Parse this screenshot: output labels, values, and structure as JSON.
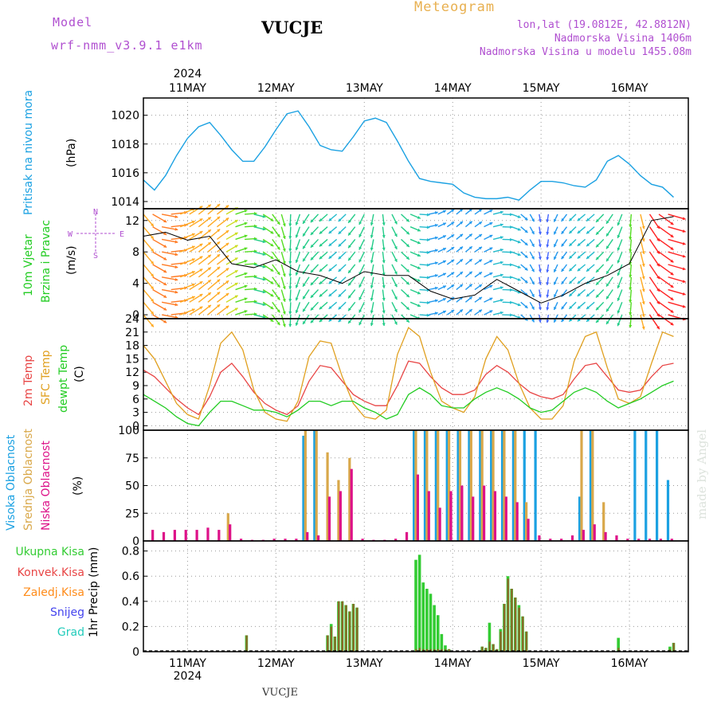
{
  "header": {
    "model_label": "Model",
    "model_name": "wrf-nmm_v3.9.1  e1km",
    "station": "VUCJE",
    "meteogram": "Meteogram",
    "lonlat": "lon,lat (19.0812E, 42.8812N)",
    "altitude": "Nadmorska Visina 1406m",
    "model_altitude": "Nadmorska Visina u modelu 1455.08m",
    "footer_station": "VUCJE",
    "signature": "made by Angel"
  },
  "colors": {
    "pressure": "#1ba1e2",
    "temp": "#e84545",
    "sfc": "#e0a020",
    "dewpt": "#22cc22",
    "high_cloud": "#1ba1e2",
    "mid_cloud": "#d9a84a",
    "low_cloud": "#dd1188",
    "total_precip": "#33cc33",
    "conv_precip": "#e84545",
    "freezing_precip": "#ff8c1a",
    "snow": "#4444ee",
    "graupel": "#22ccbb"
  },
  "axes": {
    "year": "2024",
    "days": [
      "11MAY",
      "12MAY",
      "13MAY",
      "14MAY",
      "15MAY",
      "16MAY"
    ]
  },
  "panels": {
    "pressure": {
      "label": "Pritisak na nivou mora",
      "unit": "(hPa)"
    },
    "wind": {
      "label1": "10m Vjetar",
      "label2": "Brzina i Pravac",
      "unit": "(m/s)",
      "compass": [
        "N",
        "W",
        "E",
        "S"
      ]
    },
    "temp": {
      "label1": "2m Temp",
      "label2": "SFC Temp",
      "label3": "dewpt Temp",
      "unit": "(C)"
    },
    "cloud": {
      "label1": "Visoka Oblacnost",
      "label2": "Srednja Oblacnost",
      "label3": "Niska Oblacnost",
      "unit": "(%)"
    },
    "precip": {
      "legend": [
        "Ukupna Kisa",
        "Konvek.Kisa",
        "Zaledj.Kisa",
        "Snijeg",
        "Grad"
      ],
      "unit": "1hr Precip (mm)"
    }
  },
  "chart_data": [
    {
      "type": "line",
      "title": "",
      "ylabel": "Pritisak na nivou mora (hPa)",
      "ylim": [
        1013.5,
        1021.2
      ],
      "yticks": [
        1014,
        1016,
        1018,
        1020
      ],
      "x_hours": [
        0,
        3,
        6,
        9,
        12,
        15,
        18,
        21,
        24,
        27,
        30,
        33,
        36,
        39,
        42,
        45,
        48,
        51,
        54,
        57,
        60,
        63,
        66,
        69,
        72,
        75,
        78,
        81,
        84,
        87,
        90,
        93,
        96,
        99,
        102,
        105,
        108,
        111,
        114,
        117,
        120,
        123,
        126,
        129,
        132,
        135,
        138,
        141,
        144
      ],
      "series": [
        {
          "values": [
            1015.5,
            1014.8,
            1015.8,
            1017.2,
            1018.4,
            1019.2,
            1019.5,
            1018.6,
            1017.6,
            1016.8,
            1016.8,
            1017.8,
            1019.0,
            1020.1,
            1020.3,
            1019.2,
            1017.9,
            1017.6,
            1017.5,
            1018.5,
            1019.6,
            1019.8,
            1019.5,
            1018.2,
            1016.8,
            1015.6,
            1015.4,
            1015.3,
            1015.2,
            1014.6,
            1014.3,
            1014.2,
            1014.2,
            1014.3,
            1014.1,
            1014.8,
            1015.4,
            1015.4,
            1015.3,
            1015.1,
            1015.0,
            1015.5,
            1016.8,
            1017.2,
            1016.6,
            1015.8,
            1015.2,
            1015.0,
            1014.3
          ]
        }
      ]
    },
    {
      "type": "scatter",
      "title": "",
      "ylabel": "10m Vjetar Brzina i Pravac (m/s)",
      "ylim": [
        -0.5,
        13.5
      ],
      "yticks": [
        0,
        4,
        8,
        12
      ],
      "x_hours": [
        0,
        6,
        12,
        18,
        24,
        30,
        36,
        42,
        48,
        54,
        60,
        66,
        72,
        78,
        84,
        90,
        96,
        102,
        108,
        114,
        120,
        126,
        132,
        138,
        144
      ],
      "speed": [
        10.0,
        10.5,
        9.5,
        10.0,
        6.5,
        6.0,
        7.0,
        5.5,
        5.0,
        4.0,
        5.5,
        5.0,
        5.0,
        3.0,
        2.0,
        2.5,
        4.5,
        3.0,
        1.5,
        2.5,
        4.0,
        5.0,
        6.5,
        12.0,
        12.5
      ]
    },
    {
      "type": "line",
      "title": "",
      "ylabel": "(C)",
      "ylim": [
        -1,
        24
      ],
      "yticks": [
        0,
        3,
        6,
        9,
        12,
        15,
        18,
        21,
        24
      ],
      "x_hours": [
        0,
        3,
        6,
        9,
        12,
        15,
        18,
        21,
        24,
        27,
        30,
        33,
        36,
        39,
        42,
        45,
        48,
        51,
        54,
        57,
        60,
        63,
        66,
        69,
        72,
        75,
        78,
        81,
        84,
        87,
        90,
        93,
        96,
        99,
        102,
        105,
        108,
        111,
        114,
        117,
        120,
        123,
        126,
        129,
        132,
        135,
        138,
        141,
        144
      ],
      "series": [
        {
          "name": "2m Temp",
          "values": [
            12.5,
            11.0,
            8.5,
            6.0,
            4.0,
            2.5,
            6.5,
            12.0,
            14.0,
            11.0,
            7.5,
            5.0,
            3.5,
            2.5,
            4.5,
            10.0,
            13.5,
            13.0,
            10.0,
            7.0,
            5.5,
            4.5,
            4.5,
            9.0,
            14.5,
            14.0,
            11.0,
            8.5,
            7.0,
            7.0,
            8.0,
            11.5,
            13.5,
            12.0,
            9.5,
            7.5,
            6.5,
            6.0,
            7.0,
            10.5,
            13.5,
            14.0,
            11.0,
            8.0,
            7.5,
            8.0,
            11.0,
            13.5,
            14.0
          ]
        },
        {
          "name": "SFC Temp",
          "values": [
            18.0,
            15.0,
            10.0,
            5.0,
            2.5,
            1.5,
            9.0,
            18.5,
            21.0,
            17.0,
            8.0,
            3.0,
            1.5,
            1.0,
            5.5,
            15.5,
            19.0,
            18.5,
            11.0,
            5.0,
            2.0,
            1.5,
            3.5,
            16.0,
            22.0,
            20.0,
            12.0,
            5.5,
            4.0,
            3.0,
            6.5,
            15.0,
            20.0,
            17.0,
            9.5,
            4.0,
            1.5,
            1.5,
            4.5,
            14.5,
            20.0,
            21.0,
            13.0,
            6.0,
            5.0,
            6.5,
            14.0,
            21.0,
            20.0
          ]
        },
        {
          "name": "dewpt Temp",
          "values": [
            7.0,
            5.5,
            4.0,
            2.0,
            0.5,
            0.0,
            3.0,
            5.5,
            5.5,
            4.5,
            3.5,
            3.5,
            3.0,
            2.0,
            3.5,
            5.5,
            5.5,
            4.5,
            5.5,
            5.5,
            4.0,
            3.0,
            1.5,
            2.5,
            7.0,
            8.5,
            7.0,
            4.5,
            4.0,
            4.0,
            6.0,
            7.5,
            8.5,
            7.5,
            6.0,
            4.0,
            3.0,
            3.5,
            5.5,
            7.5,
            8.5,
            7.5,
            5.5,
            4.0,
            5.0,
            6.0,
            7.5,
            9.0,
            10.0
          ]
        }
      ]
    },
    {
      "type": "bar",
      "title": "",
      "ylabel": "(%)",
      "ylim": [
        0,
        100
      ],
      "yticks": [
        0,
        25,
        50,
        75,
        100
      ],
      "x_hours": [
        2,
        5,
        8,
        11,
        14,
        17,
        20,
        23,
        26,
        29,
        32,
        35,
        38,
        41,
        44,
        47,
        50,
        53,
        56,
        59,
        62,
        65,
        68,
        71,
        74,
        77,
        80,
        83,
        86,
        89,
        92,
        95,
        98,
        101,
        104,
        107,
        110,
        113,
        116,
        119,
        122,
        125,
        128,
        131,
        134,
        137,
        140,
        143
      ],
      "series": [
        {
          "name": "Visoka Oblacnost",
          "values": [
            0,
            0,
            0,
            0,
            0,
            0,
            0,
            0,
            0,
            0,
            0,
            0,
            0,
            0,
            95,
            100,
            0,
            0,
            0,
            0,
            0,
            0,
            0,
            0,
            100,
            100,
            100,
            100,
            100,
            100,
            100,
            100,
            100,
            100,
            100,
            100,
            0,
            0,
            0,
            40,
            100,
            0,
            0,
            0,
            100,
            100,
            100,
            55
          ]
        },
        {
          "name": "Srednja Oblacnost",
          "values": [
            0,
            0,
            0,
            0,
            0,
            0,
            0,
            25,
            0,
            0,
            0,
            0,
            0,
            0,
            100,
            100,
            80,
            55,
            75,
            0,
            0,
            0,
            0,
            0,
            100,
            100,
            100,
            100,
            100,
            100,
            100,
            100,
            100,
            100,
            35,
            0,
            0,
            0,
            0,
            100,
            100,
            35,
            0,
            0,
            0,
            0,
            0,
            0
          ]
        },
        {
          "name": "Niska Oblacnost",
          "values": [
            10,
            8,
            10,
            10,
            10,
            12,
            10,
            15,
            2,
            1,
            1,
            2,
            2,
            2,
            8,
            5,
            40,
            45,
            65,
            2,
            1,
            1,
            2,
            8,
            60,
            45,
            30,
            45,
            50,
            40,
            50,
            45,
            40,
            35,
            20,
            5,
            2,
            2,
            5,
            10,
            15,
            8,
            5,
            2,
            2,
            2,
            2,
            2
          ]
        }
      ]
    },
    {
      "type": "bar",
      "title": "",
      "ylabel": "1hr Precip (mm)",
      "ylim": [
        0,
        0.88
      ],
      "yticks": [
        0,
        0.2,
        0.4,
        0.6,
        0.8
      ],
      "x_hours": [
        28,
        50,
        51,
        52,
        53,
        54,
        55,
        56,
        57,
        58,
        74,
        75,
        76,
        77,
        78,
        79,
        80,
        81,
        82,
        83,
        92,
        93,
        94,
        95,
        96,
        97,
        98,
        99,
        100,
        101,
        102,
        103,
        104,
        129,
        143,
        144
      ],
      "series": [
        {
          "name": "Ukupna Kisa",
          "values": [
            0.13,
            0.13,
            0.22,
            0.12,
            0.4,
            0.4,
            0.37,
            0.32,
            0.38,
            0.35,
            0.73,
            0.77,
            0.55,
            0.5,
            0.46,
            0.37,
            0.29,
            0.14,
            0.05,
            0.02,
            0.04,
            0.03,
            0.23,
            0.06,
            0.02,
            0.18,
            0.38,
            0.6,
            0.5,
            0.43,
            0.37,
            0.28,
            0.16,
            0.11,
            0.04,
            0.07
          ]
        },
        {
          "name": "Konvek.Kisa",
          "values": [
            0.13,
            0.13,
            0.2,
            0.12,
            0.4,
            0.4,
            0.37,
            0.32,
            0.38,
            0.35,
            0.02,
            0.03,
            0.02,
            0.02,
            0.02,
            0.02,
            0.02,
            0.02,
            0.02,
            0.02,
            0.04,
            0.03,
            0.08,
            0.06,
            0.02,
            0.16,
            0.38,
            0.58,
            0.5,
            0.43,
            0.35,
            0.28,
            0.16,
            0.03,
            0.02,
            0.07
          ]
        }
      ]
    }
  ]
}
